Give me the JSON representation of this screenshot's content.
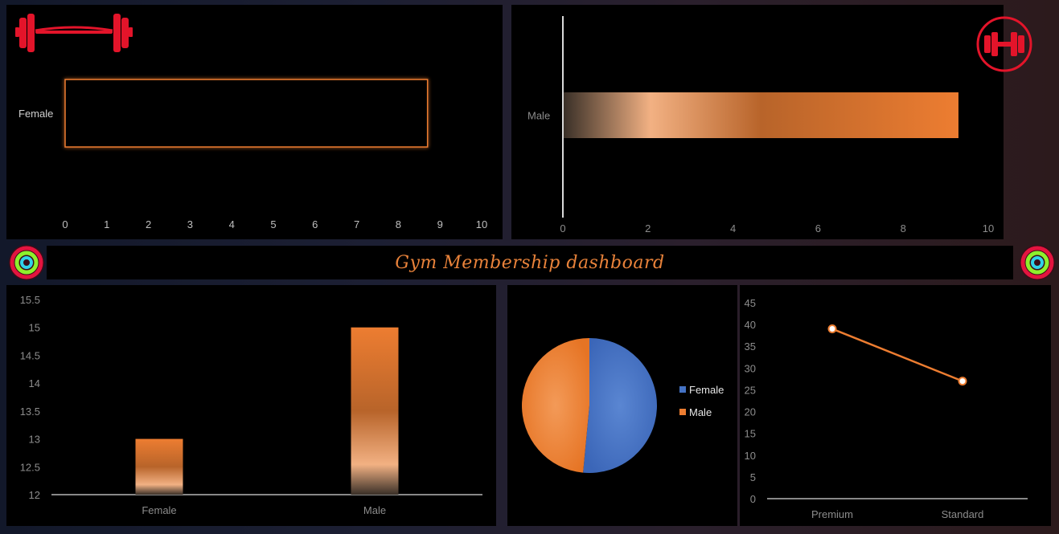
{
  "dashboard": {
    "title": "Gym Membership dashboard",
    "icons": [
      "barbell-icon",
      "dumbbell-badge-icon",
      "activity-rings-icon"
    ]
  },
  "colors": {
    "accent_orange": "#ed7d31",
    "female_blue": "#4472c4",
    "male_orange": "#ed7d31",
    "icon_red": "#e3142a"
  },
  "chart_data": [
    {
      "id": "female-bar",
      "type": "bar",
      "orientation": "horizontal",
      "categories": [
        "Female"
      ],
      "values": [
        8.7
      ],
      "xlim": [
        0,
        10
      ],
      "xticks": [
        "0",
        "1",
        "2",
        "3",
        "4",
        "5",
        "6",
        "7",
        "8",
        "9",
        "10"
      ],
      "grid": false
    },
    {
      "id": "male-bar",
      "type": "bar",
      "orientation": "horizontal",
      "categories": [
        "Male"
      ],
      "values": [
        9.3
      ],
      "xlim": [
        0,
        10
      ],
      "xticks": [
        "0",
        "2",
        "4",
        "6",
        "8",
        "10"
      ],
      "grid": false
    },
    {
      "id": "gender-column",
      "type": "bar",
      "orientation": "vertical",
      "categories": [
        "Female",
        "Male"
      ],
      "values": [
        13,
        15
      ],
      "ylim": [
        12,
        15.5
      ],
      "yticks": [
        "12",
        "12.5",
        "13",
        "13.5",
        "14",
        "14.5",
        "15",
        "15.5"
      ],
      "grid": false
    },
    {
      "id": "gender-pie",
      "type": "pie",
      "labels": [
        "Female",
        "Male"
      ],
      "values": [
        51.5,
        48.5
      ],
      "colors": [
        "#4472c4",
        "#ed7d31"
      ],
      "legend": "right"
    },
    {
      "id": "membership-line",
      "type": "line",
      "categories": [
        "Premium",
        "Standard"
      ],
      "values": [
        39,
        27
      ],
      "ylim": [
        0,
        45
      ],
      "yticks": [
        "0",
        "5",
        "10",
        "15",
        "20",
        "25",
        "30",
        "35",
        "40",
        "45"
      ],
      "grid": false
    }
  ]
}
